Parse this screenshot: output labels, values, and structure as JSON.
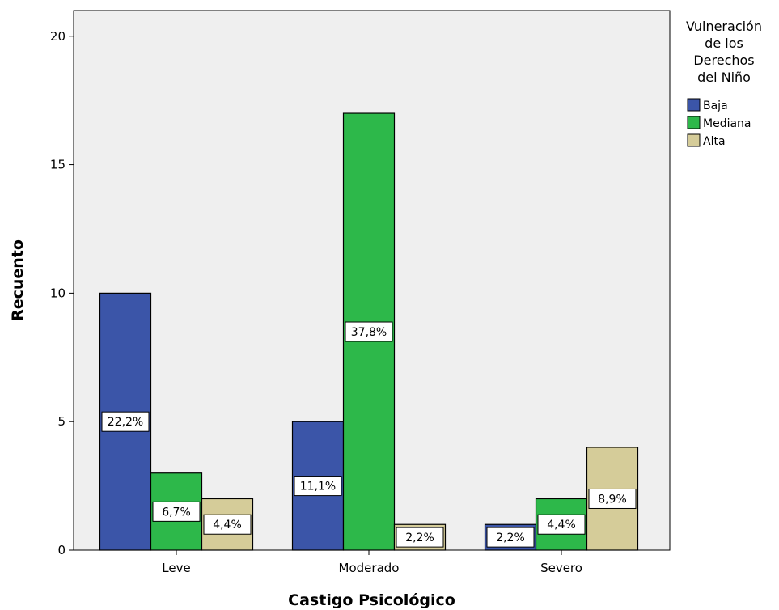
{
  "chart_data": {
    "type": "bar",
    "title": "",
    "xlabel": "Castigo Psicológico",
    "ylabel": "Recuento",
    "categories": [
      "Leve",
      "Moderado",
      "Severo"
    ],
    "ylim": [
      0,
      21
    ],
    "yticks": [
      0,
      5,
      10,
      15,
      20
    ],
    "grid": false,
    "legend": {
      "title_lines": [
        "Vulneración",
        "de los",
        "Derechos",
        "del Niño"
      ],
      "placement": "right"
    },
    "series": [
      {
        "name": "Baja",
        "color": "#3b55a8",
        "values": [
          10,
          5,
          1
        ],
        "labels": [
          "22,2%",
          "11,1%",
          "2,2%"
        ]
      },
      {
        "name": "Mediana",
        "color": "#2db84a",
        "values": [
          3,
          17,
          2
        ],
        "labels": [
          "6,7%",
          "37,8%",
          "4,4%"
        ]
      },
      {
        "name": "Alta",
        "color": "#d5cc99",
        "values": [
          2,
          1,
          4
        ],
        "labels": [
          "4,4%",
          "2,2%",
          "8,9%"
        ]
      }
    ],
    "plot_background": "#efefef"
  }
}
